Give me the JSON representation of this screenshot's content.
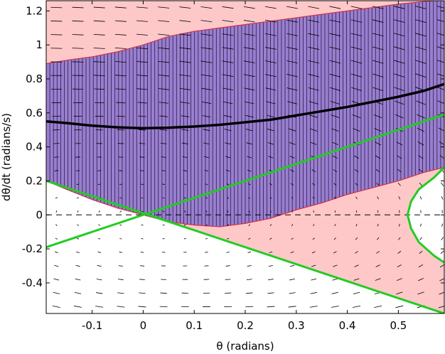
{
  "chart_data": {
    "type": "area",
    "xlabel": "θ (radians)",
    "ylabel": "dθ/dt (radians/s)",
    "xlim": [
      -0.19,
      0.59
    ],
    "ylim": [
      -0.58,
      1.26
    ],
    "x_ticks": [
      -0.1,
      0,
      0.1,
      0.2,
      0.3,
      0.4,
      0.5
    ],
    "x_tick_labels": [
      "-0.1",
      "0",
      "0.1",
      "0.2",
      "0.3",
      "0.4",
      "0.5"
    ],
    "y_ticks": [
      -0.4,
      -0.2,
      0,
      0.2,
      0.4,
      0.6,
      0.8,
      1,
      1.2
    ],
    "y_tick_labels": [
      "-0.4",
      "-0.2",
      "0",
      "0.2",
      "0.4",
      "0.6",
      "0.8",
      "1",
      "1.2"
    ],
    "grid": false,
    "colors": {
      "region_pink": "#ffc8c8",
      "region_purple": "#9a7fd0",
      "region_white": "#ffffff",
      "boundary_red": "#d0304a",
      "lines_green": "#22cc22",
      "trajectory": "#000000",
      "arrows": "#000000"
    },
    "regions": [
      {
        "color": "#9a7fd0",
        "hatch": "vertical",
        "upper_boundary": {
          "x": [
            -0.19,
            -0.15,
            -0.1,
            -0.05,
            0.0,
            0.05,
            0.1,
            0.15,
            0.2,
            0.25,
            0.3,
            0.35,
            0.4,
            0.45,
            0.5,
            0.55,
            0.59
          ],
          "y": [
            0.89,
            0.91,
            0.93,
            0.96,
            1.0,
            1.05,
            1.08,
            1.1,
            1.12,
            1.14,
            1.16,
            1.18,
            1.2,
            1.22,
            1.24,
            1.255,
            1.265
          ]
        },
        "lower_boundary": {
          "x": [
            -0.19,
            -0.15,
            -0.1,
            -0.05,
            0.0,
            0.05,
            0.1,
            0.15,
            0.2,
            0.25,
            0.3,
            0.35,
            0.4,
            0.45,
            0.5,
            0.55,
            0.59
          ],
          "y": [
            0.2,
            0.15,
            0.09,
            0.04,
            0.0,
            -0.04,
            -0.06,
            -0.07,
            -0.05,
            -0.02,
            0.03,
            0.07,
            0.12,
            0.16,
            0.2,
            0.25,
            0.28
          ]
        }
      }
    ],
    "series": [
      {
        "type": "line",
        "color": "#000000",
        "x": [
          -0.19,
          -0.15,
          -0.1,
          -0.05,
          0.0,
          0.05,
          0.1,
          0.15,
          0.2,
          0.25,
          0.3,
          0.35,
          0.4,
          0.45,
          0.5,
          0.55,
          0.59
        ],
        "y": [
          0.55,
          0.54,
          0.525,
          0.515,
          0.51,
          0.513,
          0.52,
          0.53,
          0.545,
          0.56,
          0.585,
          0.61,
          0.635,
          0.665,
          0.695,
          0.73,
          0.77
        ]
      },
      {
        "type": "line",
        "color": "#22cc22",
        "x": [
          -0.19,
          0.59
        ],
        "y": [
          -0.19,
          0.59
        ]
      },
      {
        "type": "line",
        "color": "#22cc22",
        "x": [
          -0.19,
          0.59
        ],
        "y": [
          0.2,
          -0.58
        ]
      },
      {
        "type": "line",
        "color": "#22cc22",
        "x": [
          0.59,
          0.57,
          0.54,
          0.525,
          0.518,
          0.525,
          0.54,
          0.57,
          0.59
        ],
        "y": [
          0.28,
          0.22,
          0.15,
          0.08,
          0.0,
          -0.08,
          -0.16,
          -0.24,
          -0.28
        ]
      },
      {
        "type": "line",
        "style": "dashed",
        "color": "#000000",
        "x": [
          -0.19,
          0.59
        ],
        "y": [
          0,
          0
        ]
      }
    ]
  }
}
